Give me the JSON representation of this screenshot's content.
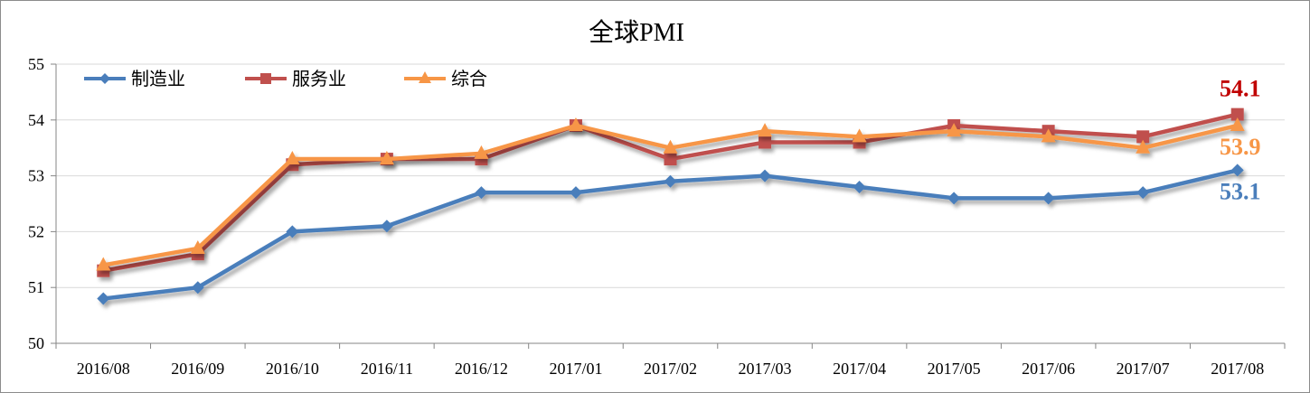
{
  "chart_data": {
    "type": "line",
    "title": "全球PMI",
    "categories": [
      "2016/08",
      "2016/09",
      "2016/10",
      "2016/11",
      "2016/12",
      "2017/01",
      "2017/02",
      "2017/03",
      "2017/04",
      "2017/05",
      "2017/06",
      "2017/07",
      "2017/08"
    ],
    "ylim": [
      50,
      55
    ],
    "yticks": [
      50,
      51,
      52,
      53,
      54,
      55
    ],
    "grid": true,
    "legend": "top-left",
    "series": [
      {
        "name": "制造业",
        "color": "#4a7ebb",
        "marker": "diamond",
        "values": [
          50.8,
          51.0,
          52.0,
          52.1,
          52.7,
          52.7,
          52.9,
          53.0,
          52.8,
          52.6,
          52.6,
          52.7,
          53.1
        ],
        "end_label": "53.1"
      },
      {
        "name": "服务业",
        "color": "#c0504d",
        "marker": "square",
        "values": [
          51.3,
          51.6,
          53.2,
          53.3,
          53.3,
          53.9,
          53.3,
          53.6,
          53.6,
          53.9,
          53.8,
          53.7,
          54.1
        ],
        "end_label": "54.1",
        "end_label_color": "#c00000"
      },
      {
        "name": "综合",
        "color": "#f79646",
        "marker": "triangle",
        "values": [
          51.4,
          51.7,
          53.3,
          53.3,
          53.4,
          53.9,
          53.5,
          53.8,
          53.7,
          53.8,
          53.7,
          53.5,
          53.9
        ],
        "end_label": "53.9"
      }
    ]
  }
}
